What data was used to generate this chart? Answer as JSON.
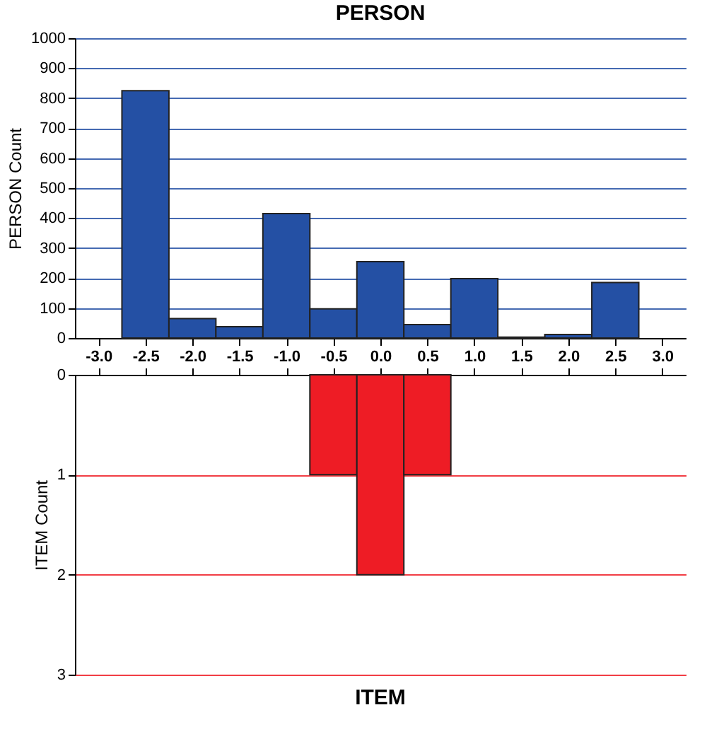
{
  "chart_data": [
    {
      "type": "histogram",
      "title": "PERSON",
      "ylabel": "PERSON Count",
      "color": "#2450a4",
      "grid": "y",
      "bins": [
        -2.75,
        -2.25,
        -1.75,
        -1.25,
        -0.75,
        -0.25,
        0.25,
        0.75,
        1.25,
        1.75,
        2.25,
        2.75
      ],
      "values": [
        825,
        65,
        38,
        415,
        97,
        255,
        45,
        198,
        3,
        12,
        185
      ],
      "xlim": [
        -3.25,
        3.25
      ],
      "xticks": [
        {
          "value": -3,
          "label": "-3.0"
        },
        {
          "value": -2.5,
          "label": "-2.5"
        },
        {
          "value": -2,
          "label": "-2.0"
        },
        {
          "value": -1.5,
          "label": "-1.5"
        },
        {
          "value": -1,
          "label": "-1.0"
        },
        {
          "value": -0.5,
          "label": "-0.5"
        },
        {
          "value": 0,
          "label": "0.0"
        },
        {
          "value": 0.5,
          "label": "0.5"
        },
        {
          "value": 1,
          "label": "1.0"
        },
        {
          "value": 1.5,
          "label": "1.5"
        },
        {
          "value": 2,
          "label": "2.0"
        },
        {
          "value": 2.5,
          "label": "2.5"
        },
        {
          "value": 3,
          "label": "3.0"
        }
      ],
      "ylim": [
        0,
        1000
      ],
      "yticks": [
        0,
        100,
        200,
        300,
        400,
        500,
        600,
        700,
        800,
        900,
        1000
      ]
    },
    {
      "type": "histogram",
      "title": "ITEM",
      "ylabel": "ITEM Count",
      "color": "#ee1c25",
      "grid": "y",
      "tick_labels": "y",
      "bins": [
        -2.75,
        -2.25,
        -1.75,
        -1.25,
        -0.75,
        -0.25,
        0.25,
        0.75,
        1.25,
        1.75,
        2.25,
        2.75
      ],
      "values": [
        0,
        0,
        0,
        0,
        1,
        2,
        1,
        0,
        0,
        0,
        0
      ],
      "xlim": [
        -3.25,
        3.25
      ],
      "xticks": [
        {
          "value": -3,
          "label": null
        },
        {
          "value": -2.5,
          "label": null
        },
        {
          "value": -2,
          "label": null
        },
        {
          "value": -1.5,
          "label": null
        },
        {
          "value": -1,
          "label": null
        },
        {
          "value": -0.5,
          "label": null
        },
        {
          "value": 0,
          "label": null
        },
        {
          "value": 0.5,
          "label": null
        },
        {
          "value": 1,
          "label": null
        },
        {
          "value": 1.5,
          "label": null
        },
        {
          "value": 2,
          "label": null
        },
        {
          "value": 2.5,
          "label": null
        },
        {
          "value": 3,
          "label": null
        }
      ],
      "ylim": [
        3,
        0
      ],
      "yticks": [
        0,
        1,
        2,
        3
      ]
    }
  ]
}
